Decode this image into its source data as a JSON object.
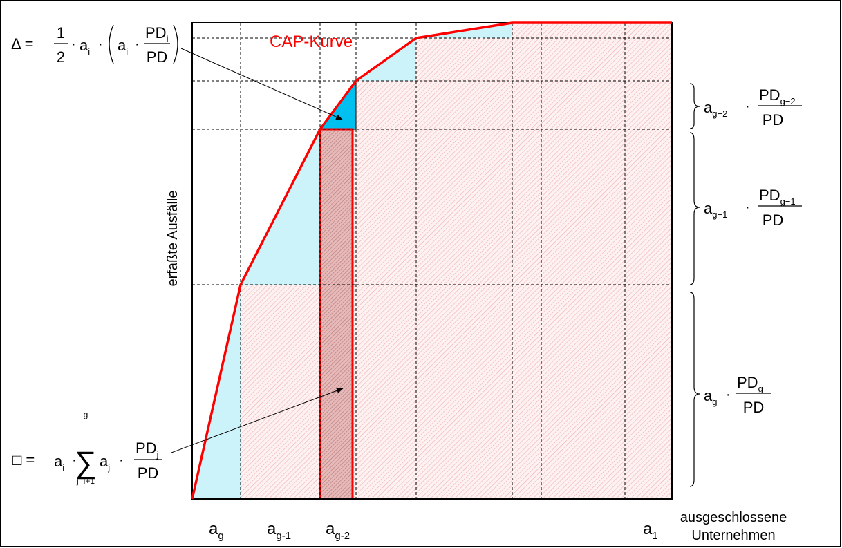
{
  "labels": {
    "curve": "CAP-Kurve",
    "y_axis": "erfaßte Ausfälle",
    "x_axis_line1": "ausgeschlossene",
    "x_axis_line2": "Unternehmen"
  },
  "x_ticks": {
    "ag": {
      "base": "a",
      "sub": "g"
    },
    "ag1": {
      "base": "a",
      "sub": "g-1"
    },
    "ag2": {
      "base": "a",
      "sub": "g-2"
    },
    "a1": {
      "base": "a",
      "sub": "1"
    }
  },
  "formula_triangle": {
    "lhs": "Δ =",
    "num": "1",
    "den": "2",
    "dot": "·",
    "a": "a",
    "i": "i",
    "pd": "PD",
    "pd_sub": "i",
    "pd_den": "PD"
  },
  "formula_rect": {
    "lhs": "□ =",
    "a": "a",
    "i": "i",
    "dot": "·",
    "sum_top": "g",
    "sum_sym": "∑",
    "sum_bottom": "j=i+1",
    "aj": "a",
    "j": "j",
    "pd": "PD",
    "pd_sub": "j",
    "pd_den": "PD"
  },
  "right_brackets": [
    {
      "a": "a",
      "sub": "g−2",
      "pd": "PD",
      "pd_sub": "g−2",
      "den": "PD"
    },
    {
      "a": "a",
      "sub": "g−1",
      "pd": "PD",
      "pd_sub": "g−1",
      "den": "PD"
    },
    {
      "a": "a",
      "sub": "g",
      "pd": "PD",
      "pd_sub": "g",
      "den": "PD"
    }
  ],
  "colors": {
    "curve": "#ff0000",
    "fill_light_blue": "#ccf2fa",
    "fill_cyan": "#00c0f0",
    "hatch": "#f2b8b8"
  }
}
